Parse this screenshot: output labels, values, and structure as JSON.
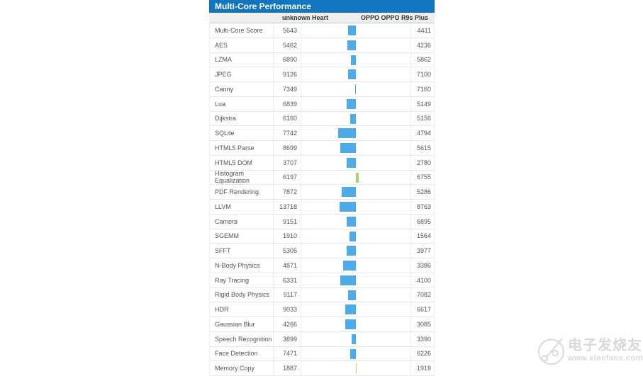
{
  "table": {
    "title": "Multi-Core Performance",
    "columns": [
      "unknown Heart",
      "OPPO OPPO R9s Plus"
    ]
  },
  "chart_data": {
    "type": "bar",
    "title": "Multi-Core Performance",
    "categories": [
      "Multi-Core Score",
      "AES",
      "LZMA",
      "JPEG",
      "Canny",
      "Lua",
      "Dijkstra",
      "SQLite",
      "HTML5 Parse",
      "HTML5 DOM",
      "Histogram Equalization",
      "PDF Rendering",
      "LLVM",
      "Camera",
      "SGEMM",
      "SFFT",
      "N-Body Physics",
      "Ray Tracing",
      "Rigid Body Physics",
      "HDR",
      "Gaussian Blur",
      "Speech Recognition",
      "Face Detection",
      "Memory Copy"
    ],
    "series": [
      {
        "name": "unknown Heart",
        "values": [
          5643,
          5462,
          6890,
          9126,
          7349,
          6839,
          6160,
          7742,
          8699,
          3707,
          6197,
          7872,
          13718,
          9151,
          1910,
          5305,
          4871,
          6331,
          9117,
          9033,
          4266,
          3899,
          7471,
          1887
        ]
      },
      {
        "name": "OPPO OPPO R9s Plus",
        "values": [
          4411,
          4236,
          5862,
          7100,
          7160,
          5149,
          5156,
          4794,
          5615,
          2780,
          6755,
          5286,
          8763,
          6895,
          1564,
          3977,
          3386,
          4100,
          7082,
          6617,
          3085,
          3390,
          6226,
          1919
        ]
      }
    ],
    "bar_encoding": "diverging from center: blue bar extends left when first device leads, green bar extends right when second device leads; width proportional to percent difference",
    "legend_position": "none",
    "grid": false,
    "xlabel": "",
    "ylabel": ""
  },
  "colors": {
    "title_bar_bg": "#1076bf",
    "title_text": "#ffffff",
    "header_row_bg": "#efefef",
    "bar_device1_leads": "#4dabe9",
    "bar_device2_leads": "#a3d76e",
    "row_border": "#e6e6e6"
  },
  "watermark": {
    "brand": "电子发烧友",
    "url": "www.elecfans.com"
  }
}
